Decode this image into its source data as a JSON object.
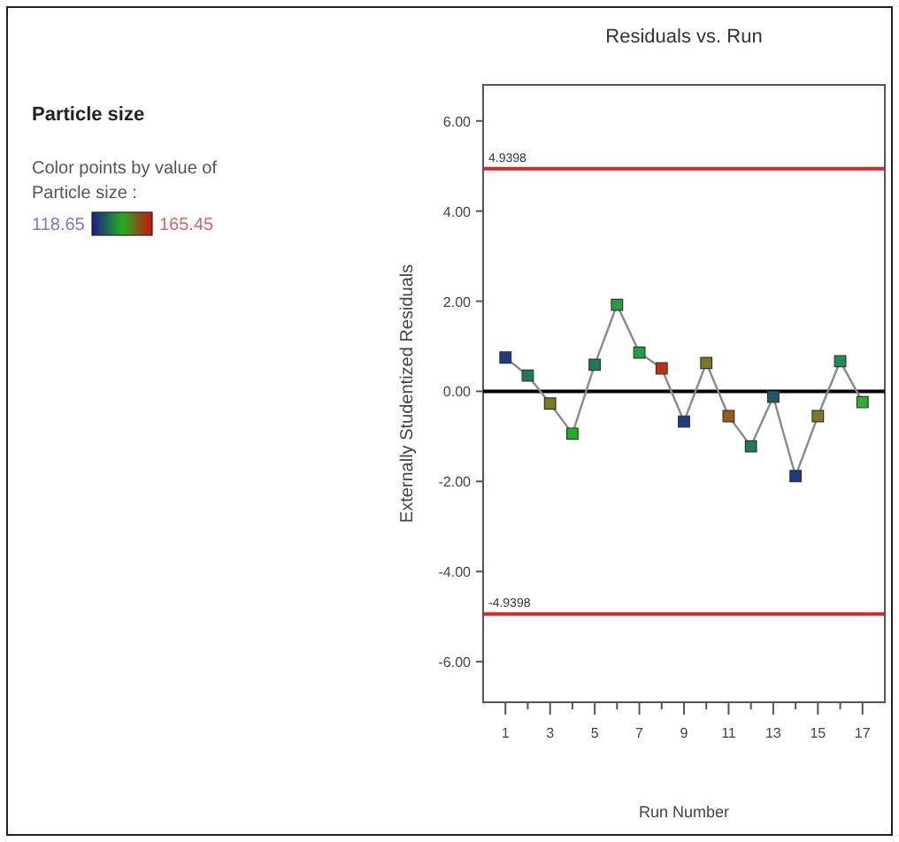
{
  "chart_data": {
    "type": "line",
    "title": "Residuals vs. Run",
    "subtitle": "Particle size",
    "xlabel": "Run Number",
    "ylabel": "Externally Studentized Residuals",
    "annotations": [
      "Color points by value of Particle size :",
      "118.65",
      "165.45"
    ],
    "x": [
      1,
      2,
      3,
      4,
      5,
      6,
      7,
      8,
      9,
      10,
      11,
      12,
      13,
      14,
      15,
      16,
      17
    ],
    "series": [
      {
        "color": "#8a8a8a",
        "values": [
          0.75,
          0.35,
          -0.27,
          -0.94,
          0.59,
          1.92,
          0.86,
          0.51,
          -0.67,
          0.63,
          -0.55,
          -1.22,
          -0.12,
          -1.88,
          -0.55,
          0.67,
          -0.24
        ],
        "colors": [
          "#1d3a8a",
          "#1f7a5a",
          "#7a7a20",
          "#20b020",
          "#1f7a5a",
          "#20a040",
          "#20a040",
          "#c03010",
          "#1d3a8a",
          "#7a7a20",
          "#9a5a18",
          "#1f7a5a",
          "#1d5a70",
          "#1d3a8a",
          "#7a7a20",
          "#1f8a5a",
          "#30b030"
        ]
      }
    ],
    "marker": "square",
    "line_style": "solid",
    "grid": false,
    "xlim": [
      0,
      18
    ],
    "xticks": [
      {
        "value": 1,
        "label": "1"
      },
      {
        "value": 2,
        "label": null
      },
      {
        "value": 3,
        "label": "3"
      },
      {
        "value": 4,
        "label": null
      },
      {
        "value": 5,
        "label": "5"
      },
      {
        "value": 6,
        "label": null
      },
      {
        "value": 7,
        "label": "7"
      },
      {
        "value": 8,
        "label": null
      },
      {
        "value": 9,
        "label": "9"
      },
      {
        "value": 10,
        "label": null
      },
      {
        "value": 11,
        "label": "11"
      },
      {
        "value": 12,
        "label": null
      },
      {
        "value": 13,
        "label": "13"
      },
      {
        "value": 14,
        "label": null
      },
      {
        "value": 15,
        "label": "15"
      },
      {
        "value": 16,
        "label": null
      },
      {
        "value": 17,
        "label": "17"
      }
    ],
    "ylim": [
      -6.9,
      6.8
    ],
    "yticks": [
      {
        "value": -6,
        "label": "-6.00"
      },
      {
        "value": -4,
        "label": "-4.00"
      },
      {
        "value": -2,
        "label": "-2.00"
      },
      {
        "value": 0,
        "label": "0.00"
      },
      {
        "value": 2,
        "label": "2.00"
      },
      {
        "value": 4,
        "label": "4.00"
      },
      {
        "value": 6,
        "label": "6.00"
      }
    ],
    "ref_lines": [
      {
        "axis": "y",
        "value": 4.9398,
        "label": "4.9398",
        "color": "#d62728"
      },
      {
        "axis": "y",
        "value": -4.9398,
        "label": "-4.9398",
        "color": "#d62728"
      },
      {
        "axis": "y",
        "value": 0,
        "color": "#000000"
      }
    ]
  }
}
